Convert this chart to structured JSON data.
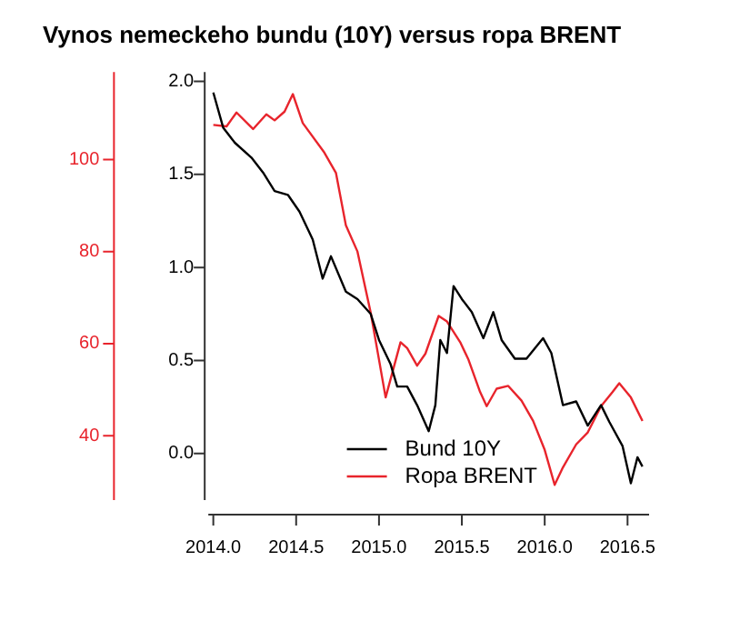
{
  "chart_data": {
    "type": "line",
    "title": "Vynos nemeckeho bundu (10Y) versus ropa BRENT",
    "xlim": [
      2013.97,
      2016.63
    ],
    "xticks": [
      {
        "value": 2014,
        "label": "2014.0"
      },
      {
        "value": 2014.5,
        "label": "2014.5"
      },
      {
        "value": 2015,
        "label": "2015.0"
      },
      {
        "value": 2015.5,
        "label": "2015.5"
      },
      {
        "value": 2016,
        "label": "2016.0"
      },
      {
        "value": 2016.5,
        "label": "2016.5"
      }
    ],
    "ylim": [
      -0.25,
      2.05
    ],
    "yticks": [
      {
        "value": 0,
        "label": "0.0"
      },
      {
        "value": 0.5,
        "label": "0.5"
      },
      {
        "value": 1,
        "label": "1.0"
      },
      {
        "value": 1.5,
        "label": "1.5"
      },
      {
        "value": 2,
        "label": "2.0"
      }
    ],
    "y2lim": [
      26,
      119
    ],
    "y2ticks": [
      40,
      60,
      80,
      100
    ],
    "grid": false,
    "legend": "bottom",
    "marker": "none",
    "line_style": "solid",
    "series": [
      {
        "name": "Bund 10Y",
        "color": "#000000",
        "x": [
          2014.0,
          2014.06,
          2014.13,
          2014.23,
          2014.3,
          2014.37,
          2014.45,
          2014.52,
          2014.6,
          2014.66,
          2014.71,
          2014.8,
          2014.87,
          2014.95,
          2015.0,
          2015.07,
          2015.11,
          2015.17,
          2015.23,
          2015.3,
          2015.34,
          2015.37,
          2015.41,
          2015.45,
          2015.5,
          2015.56,
          2015.63,
          2015.69,
          2015.74,
          2015.82,
          2015.89,
          2015.99,
          2016.04,
          2016.11,
          2016.19,
          2016.26,
          2016.34,
          2016.39,
          2016.47,
          2016.52,
          2016.56,
          2016.59
        ],
        "values": [
          1.94,
          1.75,
          1.67,
          1.59,
          1.51,
          1.41,
          1.39,
          1.3,
          1.15,
          0.94,
          1.06,
          0.87,
          0.83,
          0.75,
          0.61,
          0.48,
          0.36,
          0.36,
          0.26,
          0.12,
          0.26,
          0.61,
          0.54,
          0.9,
          0.83,
          0.76,
          0.62,
          0.76,
          0.61,
          0.51,
          0.51,
          0.62,
          0.54,
          0.26,
          0.28,
          0.15,
          0.26,
          0.17,
          0.04,
          -0.16,
          -0.02,
          -0.07
        ]
      },
      {
        "name": "Ropa BRENT",
        "color": "#e8242c",
        "axis": "y2",
        "x": [
          2014.0,
          2014.08,
          2014.14,
          2014.24,
          2014.32,
          2014.37,
          2014.43,
          2014.48,
          2014.54,
          2014.67,
          2014.74,
          2014.8,
          2014.87,
          2014.95,
          2015.0,
          2015.04,
          2015.13,
          2015.17,
          2015.23,
          2015.28,
          2015.36,
          2015.41,
          2015.49,
          2015.54,
          2015.61,
          2015.65,
          2015.71,
          2015.78,
          2015.86,
          2015.93,
          2016.0,
          2016.06,
          2016.11,
          2016.19,
          2016.26,
          2016.34,
          2016.41,
          2016.45,
          2016.52,
          2016.59
        ],
        "values": [
          107.5,
          107.2,
          110.2,
          106.6,
          109.8,
          108.5,
          110.4,
          114.2,
          107.9,
          101.5,
          97.1,
          85.7,
          80.0,
          66.7,
          56.5,
          48.3,
          60.3,
          59.0,
          55.2,
          57.8,
          66.0,
          64.8,
          60.3,
          56.5,
          49.5,
          46.4,
          50.2,
          50.8,
          47.6,
          43.2,
          36.9,
          29.3,
          33.1,
          38.1,
          40.7,
          46.4,
          49.5,
          51.4,
          48.3,
          43.2
        ]
      }
    ]
  }
}
